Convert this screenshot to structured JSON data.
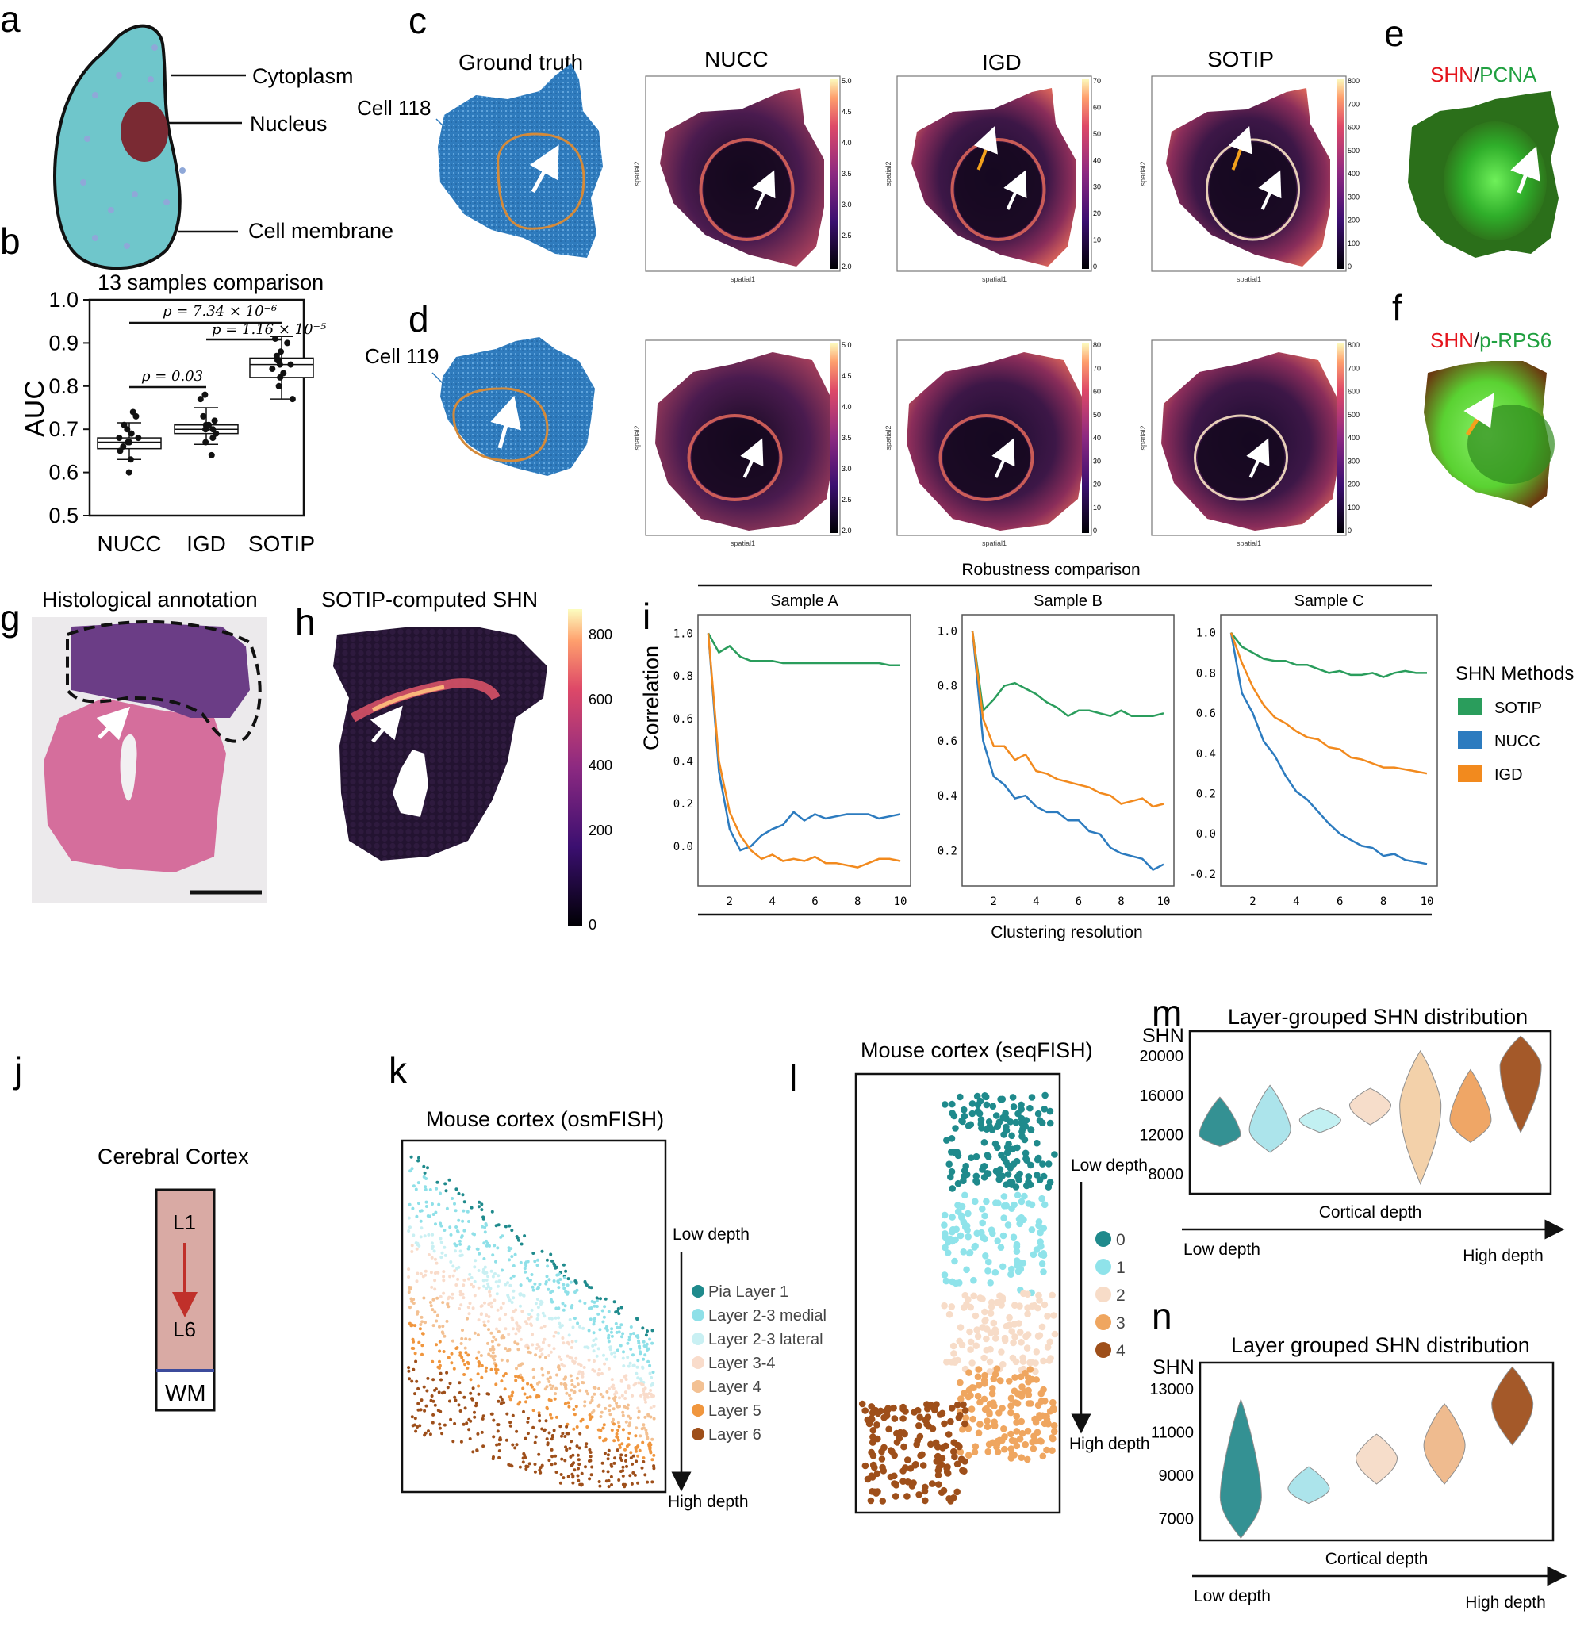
{
  "panel_letters": [
    "a",
    "b",
    "c",
    "d",
    "e",
    "f",
    "g",
    "h",
    "i",
    "j",
    "k",
    "l",
    "m",
    "n"
  ],
  "cell_diagram": {
    "labels": [
      "Cytoplasm",
      "Nucleus",
      "Cell membrane"
    ]
  },
  "colors": {
    "cytoplasm": "#6fc6cb",
    "nucleus": "#7a2a33",
    "sotip": "#2a9d5c",
    "nucc": "#2c7bbf",
    "igd": "#f28a1e",
    "cortex_fill": "#d9aaa4",
    "cortex_arrow": "#c0302a",
    "wm_line": "#3c4b9c"
  },
  "spatial_row": {
    "titles": [
      "Ground truth",
      "NUCC",
      "IGD",
      "SOTIP"
    ],
    "cell118": "Cell 118",
    "cell119": "Cell 119",
    "xlabel": "spatial1",
    "ylabel": "spatial2",
    "cb_ticks_nucc": [
      "5.0",
      "4.5",
      "4.0",
      "3.5",
      "3.0",
      "2.5",
      "2.0"
    ],
    "cb_ticks_igd_c": [
      "70",
      "60",
      "50",
      "40",
      "30",
      "20",
      "10",
      "0"
    ],
    "cb_ticks_igd_d": [
      "80",
      "70",
      "60",
      "50",
      "40",
      "30",
      "20",
      "10",
      "0"
    ],
    "cb_ticks_sotip": [
      "800",
      "700",
      "600",
      "500",
      "400",
      "300",
      "200",
      "100",
      "0"
    ]
  },
  "fluor": {
    "e_red": "SHN",
    "e_slash": "/",
    "e_green": "PCNA",
    "f_red": "SHN",
    "f_slash": "/",
    "f_green": "p-RPS6"
  },
  "hist": {
    "g_title": "Histological annotation",
    "h_title": "SOTIP-computed SHN",
    "h_cb_ticks": [
      "800",
      "600",
      "400",
      "200",
      "0"
    ]
  },
  "chart_data": [
    {
      "type": "box",
      "panel": "b",
      "title": "13 samples comparison",
      "ylabel": "AUC",
      "categories": [
        "NUCC",
        "IGD",
        "SOTIP"
      ],
      "ylim": [
        0.5,
        1.0
      ],
      "yticks": [
        "1.0",
        "0.9",
        "0.8",
        "0.7",
        "0.6",
        "0.5"
      ],
      "boxes": [
        {
          "name": "NUCC",
          "q1": 0.655,
          "median": 0.67,
          "q3": 0.68,
          "whisker_low": 0.63,
          "whisker_high": 0.715
        },
        {
          "name": "IGD",
          "q1": 0.69,
          "median": 0.7,
          "q3": 0.71,
          "whisker_low": 0.665,
          "whisker_high": 0.75
        },
        {
          "name": "SOTIP",
          "q1": 0.82,
          "median": 0.85,
          "q3": 0.865,
          "whisker_low": 0.77,
          "whisker_high": 0.915
        }
      ],
      "points": {
        "NUCC": [
          0.6,
          0.63,
          0.65,
          0.66,
          0.67,
          0.67,
          0.68,
          0.68,
          0.69,
          0.7,
          0.71,
          0.73,
          0.74
        ],
        "IGD": [
          0.64,
          0.67,
          0.68,
          0.69,
          0.7,
          0.7,
          0.7,
          0.71,
          0.71,
          0.72,
          0.73,
          0.77,
          0.78
        ],
        "SOTIP": [
          0.77,
          0.8,
          0.82,
          0.83,
          0.84,
          0.85,
          0.85,
          0.86,
          0.86,
          0.87,
          0.88,
          0.9,
          0.91
        ]
      },
      "annotations": [
        "p = 7.34 × 10⁻⁶",
        "p = 1.16 × 10⁻⁵",
        "p = 0.03"
      ]
    },
    {
      "type": "line",
      "panel": "i",
      "title": "Robustness comparison",
      "xlabel": "Clustering resolution",
      "ylabel": "Correlation",
      "legend_title": "SHN Methods",
      "legend": [
        "SOTIP",
        "NUCC",
        "IGD"
      ],
      "x": [
        1,
        1.5,
        2,
        2.5,
        3,
        3.5,
        4,
        4.5,
        5,
        5.5,
        6,
        6.5,
        7,
        7.5,
        8,
        8.5,
        9,
        9.5,
        10
      ],
      "xticks": [
        "2",
        "4",
        "6",
        "8",
        "10"
      ],
      "subplots": [
        {
          "title": "Sample A",
          "ylim": [
            -0.15,
            1.05
          ],
          "yticks": [
            "1.0",
            "0.8",
            "0.6",
            "0.4",
            "0.2",
            "0.0"
          ],
          "SOTIP": [
            1.0,
            0.91,
            0.94,
            0.89,
            0.87,
            0.87,
            0.87,
            0.86,
            0.86,
            0.86,
            0.86,
            0.86,
            0.86,
            0.86,
            0.86,
            0.86,
            0.86,
            0.85,
            0.85
          ],
          "NUCC": [
            1.0,
            0.35,
            0.08,
            -0.02,
            0.0,
            0.05,
            0.08,
            0.1,
            0.16,
            0.12,
            0.15,
            0.13,
            0.14,
            0.15,
            0.15,
            0.15,
            0.13,
            0.14,
            0.15
          ],
          "IGD": [
            1.0,
            0.4,
            0.16,
            0.05,
            -0.02,
            -0.06,
            -0.04,
            -0.07,
            -0.06,
            -0.07,
            -0.05,
            -0.08,
            -0.08,
            -0.09,
            -0.1,
            -0.08,
            -0.06,
            -0.06,
            -0.07
          ]
        },
        {
          "title": "Sample B",
          "ylim": [
            0.1,
            1.03
          ],
          "yticks": [
            "1.0",
            "0.8",
            "0.6",
            "0.4",
            "0.2"
          ],
          "SOTIP": [
            1.0,
            0.71,
            0.75,
            0.8,
            0.81,
            0.79,
            0.77,
            0.74,
            0.72,
            0.69,
            0.71,
            0.71,
            0.7,
            0.69,
            0.71,
            0.69,
            0.69,
            0.69,
            0.7
          ],
          "NUCC": [
            1.0,
            0.6,
            0.47,
            0.44,
            0.39,
            0.4,
            0.36,
            0.34,
            0.34,
            0.31,
            0.31,
            0.27,
            0.26,
            0.21,
            0.19,
            0.18,
            0.17,
            0.13,
            0.15
          ],
          "IGD": [
            1.0,
            0.68,
            0.58,
            0.58,
            0.53,
            0.55,
            0.49,
            0.48,
            0.46,
            0.45,
            0.44,
            0.43,
            0.41,
            0.4,
            0.37,
            0.38,
            0.39,
            0.36,
            0.37
          ]
        },
        {
          "title": "Sample C",
          "ylim": [
            -0.22,
            1.05
          ],
          "yticks": [
            "1.0",
            "0.8",
            "0.6",
            "0.4",
            "0.2",
            "0.0",
            "-0.2"
          ],
          "SOTIP": [
            1.0,
            0.93,
            0.9,
            0.87,
            0.86,
            0.86,
            0.84,
            0.84,
            0.82,
            0.8,
            0.81,
            0.79,
            0.79,
            0.8,
            0.78,
            0.8,
            0.81,
            0.8,
            0.8
          ],
          "NUCC": [
            1.0,
            0.7,
            0.6,
            0.46,
            0.39,
            0.29,
            0.21,
            0.17,
            0.11,
            0.05,
            0.0,
            -0.03,
            -0.06,
            -0.07,
            -0.11,
            -0.1,
            -0.13,
            -0.14,
            -0.15
          ],
          "IGD": [
            1.0,
            0.85,
            0.73,
            0.64,
            0.58,
            0.55,
            0.51,
            0.48,
            0.47,
            0.43,
            0.42,
            0.38,
            0.37,
            0.35,
            0.33,
            0.33,
            0.32,
            0.31,
            0.3
          ]
        }
      ]
    },
    {
      "type": "violin",
      "panel": "m",
      "title": "Layer-grouped SHN distribution",
      "ylabel": "SHN",
      "xlabel": "Cortical depth",
      "x_left": "Low depth",
      "x_right": "High depth",
      "ylim": [
        6000,
        22500
      ],
      "yticks": [
        "20000",
        "16000",
        "12000",
        "8000"
      ],
      "groups": [
        {
          "color": "#2a8c8e",
          "min": 10800,
          "max": 15800,
          "median": 12000
        },
        {
          "color": "#a8e3ea",
          "min": 10200,
          "max": 17000,
          "median": 12500
        },
        {
          "color": "#bff0f2",
          "min": 12200,
          "max": 14700,
          "median": 13500
        },
        {
          "color": "#f6dcc8",
          "min": 13000,
          "max": 16700,
          "median": 15000
        },
        {
          "color": "#f3cfa6",
          "min": 7000,
          "max": 20500,
          "median": 15000
        },
        {
          "color": "#efa25e",
          "min": 11200,
          "max": 18600,
          "median": 13500
        },
        {
          "color": "#a0511e",
          "min": 12200,
          "max": 22000,
          "median": 19000
        }
      ]
    },
    {
      "type": "violin",
      "panel": "n",
      "title": "Layer grouped SHN distribution",
      "ylabel": "SHN",
      "xlabel": "Cortical depth",
      "x_left": "Low depth",
      "x_right": "High depth",
      "ylim": [
        6000,
        14200
      ],
      "yticks": [
        "13000",
        "11000",
        "9000",
        "7000"
      ],
      "groups": [
        {
          "color": "#2a8c8e",
          "min": 6100,
          "max": 12500,
          "median": 8000
        },
        {
          "color": "#a8e3ea",
          "min": 7700,
          "max": 9400,
          "median": 8400
        },
        {
          "color": "#f6dcc8",
          "min": 8600,
          "max": 10900,
          "median": 9800
        },
        {
          "color": "#efb88a",
          "min": 8600,
          "max": 12300,
          "median": 10400
        },
        {
          "color": "#a0511e",
          "min": 10400,
          "max": 14000,
          "median": 12300
        }
      ]
    }
  ],
  "cortex": {
    "title": "Cerebral Cortex",
    "top": "L1",
    "bottom": "L6",
    "wm": "WM"
  },
  "osm": {
    "title": "Mouse cortex (osmFISH)",
    "low": "Low depth",
    "high": "High depth",
    "legend": [
      {
        "label": "Pia Layer 1",
        "color": "#1f8a8c"
      },
      {
        "label": "Layer 2-3 medial",
        "color": "#8fe0e8"
      },
      {
        "label": "Layer 2-3 lateral",
        "color": "#c9f0f3"
      },
      {
        "label": "Layer 3-4",
        "color": "#f9dccb"
      },
      {
        "label": "Layer 4",
        "color": "#f3c193"
      },
      {
        "label": "Layer 5",
        "color": "#f0963e"
      },
      {
        "label": "Layer 6",
        "color": "#9e4f1a"
      }
    ]
  },
  "seq": {
    "title": "Mouse cortex (seqFISH)",
    "low": "Low depth",
    "high": "High depth",
    "legend": [
      {
        "label": "0",
        "color": "#1f8a8c"
      },
      {
        "label": "1",
        "color": "#8fe3ea"
      },
      {
        "label": "2",
        "color": "#f7dcc8"
      },
      {
        "label": "3",
        "color": "#efa660"
      },
      {
        "label": "4",
        "color": "#9e4f1a"
      }
    ]
  }
}
